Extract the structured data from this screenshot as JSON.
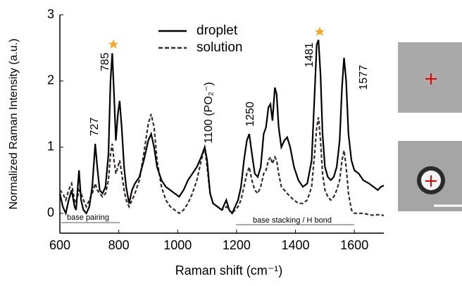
{
  "chart_data": {
    "type": "line",
    "xlabel": "Raman shift (cm⁻¹)",
    "ylabel": "Normalized Raman Intensity (a.u.)",
    "xlim": [
      600,
      1700
    ],
    "ylim": [
      -0.3,
      3
    ],
    "xticks": [
      600,
      800,
      1000,
      1200,
      1400,
      1600
    ],
    "yticks": [
      0,
      1,
      2,
      3
    ],
    "legend": "upper center",
    "annotations": [
      "785",
      "727",
      "1100 (PO₂⁻)",
      "1250",
      "1481",
      "1577",
      "base pairing",
      "base stacking / H bond"
    ],
    "x": [
      600,
      610,
      620,
      630,
      640,
      650,
      655,
      665,
      672,
      680,
      690,
      700,
      710,
      720,
      727,
      735,
      745,
      755,
      765,
      772,
      778,
      784,
      790,
      797,
      803,
      810,
      818,
      825,
      835,
      845,
      855,
      870,
      885,
      900,
      910,
      920,
      930,
      945,
      960,
      975,
      990,
      1005,
      1020,
      1035,
      1050,
      1065,
      1080,
      1092,
      1100,
      1110,
      1120,
      1135,
      1150,
      1165,
      1175,
      1185,
      1195,
      1205,
      1215,
      1225,
      1235,
      1243,
      1252,
      1262,
      1272,
      1282,
      1292,
      1300,
      1308,
      1315,
      1322,
      1330,
      1336,
      1343,
      1352,
      1362,
      1372,
      1382,
      1395,
      1410,
      1425,
      1440,
      1455,
      1465,
      1472,
      1478,
      1485,
      1492,
      1500,
      1510,
      1520,
      1530,
      1540,
      1550,
      1558,
      1565,
      1572,
      1580,
      1590,
      1600,
      1615,
      1630,
      1650,
      1665,
      1680,
      1690,
      1700
    ],
    "series": [
      {
        "name": "droplet",
        "color": "#000000",
        "linestyle": "solid",
        "values": [
          0.3,
          0.1,
          0.0,
          0.2,
          0.35,
          0.1,
          0.05,
          0.65,
          0.2,
          0.05,
          0.0,
          0.1,
          0.4,
          1.05,
          0.7,
          0.35,
          0.3,
          0.4,
          0.9,
          2.0,
          2.42,
          1.8,
          1.1,
          1.5,
          1.7,
          1.3,
          0.7,
          0.4,
          0.15,
          0.35,
          0.45,
          0.55,
          0.8,
          1.1,
          1.2,
          1.0,
          0.7,
          0.5,
          0.4,
          0.35,
          0.3,
          0.25,
          0.35,
          0.5,
          0.6,
          0.7,
          0.85,
          1.0,
          0.8,
          0.3,
          0.15,
          0.1,
          0.05,
          0.2,
          0.05,
          0.0,
          0.1,
          0.2,
          0.4,
          0.8,
          1.1,
          1.2,
          0.9,
          0.6,
          0.55,
          0.7,
          1.2,
          1.3,
          1.6,
          1.65,
          1.4,
          1.9,
          1.8,
          1.3,
          1.0,
          1.1,
          1.15,
          1.0,
          0.7,
          0.5,
          0.4,
          0.45,
          0.8,
          1.8,
          2.55,
          2.62,
          2.1,
          1.2,
          0.7,
          0.55,
          0.5,
          0.55,
          0.7,
          1.1,
          1.9,
          2.35,
          2.0,
          1.2,
          0.8,
          0.65,
          0.6,
          0.5,
          0.45,
          0.4,
          0.35,
          0.4,
          0.42
        ]
      },
      {
        "name": "solution",
        "color": "#3a2a2a",
        "linestyle": "dashed",
        "values": [
          0.35,
          0.3,
          0.2,
          0.35,
          0.45,
          0.2,
          0.15,
          0.35,
          0.3,
          0.2,
          0.1,
          0.2,
          0.3,
          0.45,
          0.35,
          0.3,
          0.25,
          0.3,
          0.5,
          0.9,
          1.05,
          0.8,
          0.6,
          0.7,
          0.8,
          0.6,
          0.35,
          0.2,
          0.1,
          0.2,
          0.3,
          0.5,
          0.9,
          1.35,
          1.5,
          1.3,
          0.8,
          0.4,
          0.2,
          0.1,
          0.05,
          0.0,
          0.05,
          0.15,
          0.3,
          0.5,
          0.8,
          1.0,
          0.7,
          0.3,
          0.15,
          0.1,
          0.05,
          0.1,
          0.05,
          0.0,
          0.05,
          0.1,
          0.2,
          0.4,
          0.6,
          0.7,
          0.5,
          0.35,
          0.3,
          0.4,
          0.6,
          0.65,
          0.8,
          0.85,
          0.75,
          0.85,
          0.8,
          0.6,
          0.4,
          0.35,
          0.3,
          0.25,
          0.2,
          0.15,
          0.15,
          0.2,
          0.4,
          0.9,
          1.3,
          1.45,
          1.1,
          0.6,
          0.35,
          0.25,
          0.2,
          0.25,
          0.35,
          0.5,
          0.8,
          0.95,
          0.7,
          0.3,
          0.05,
          0.0,
          0.0,
          0.0,
          -0.02,
          -0.03,
          -0.02,
          -0.03,
          -0.03
        ]
      }
    ]
  }
}
